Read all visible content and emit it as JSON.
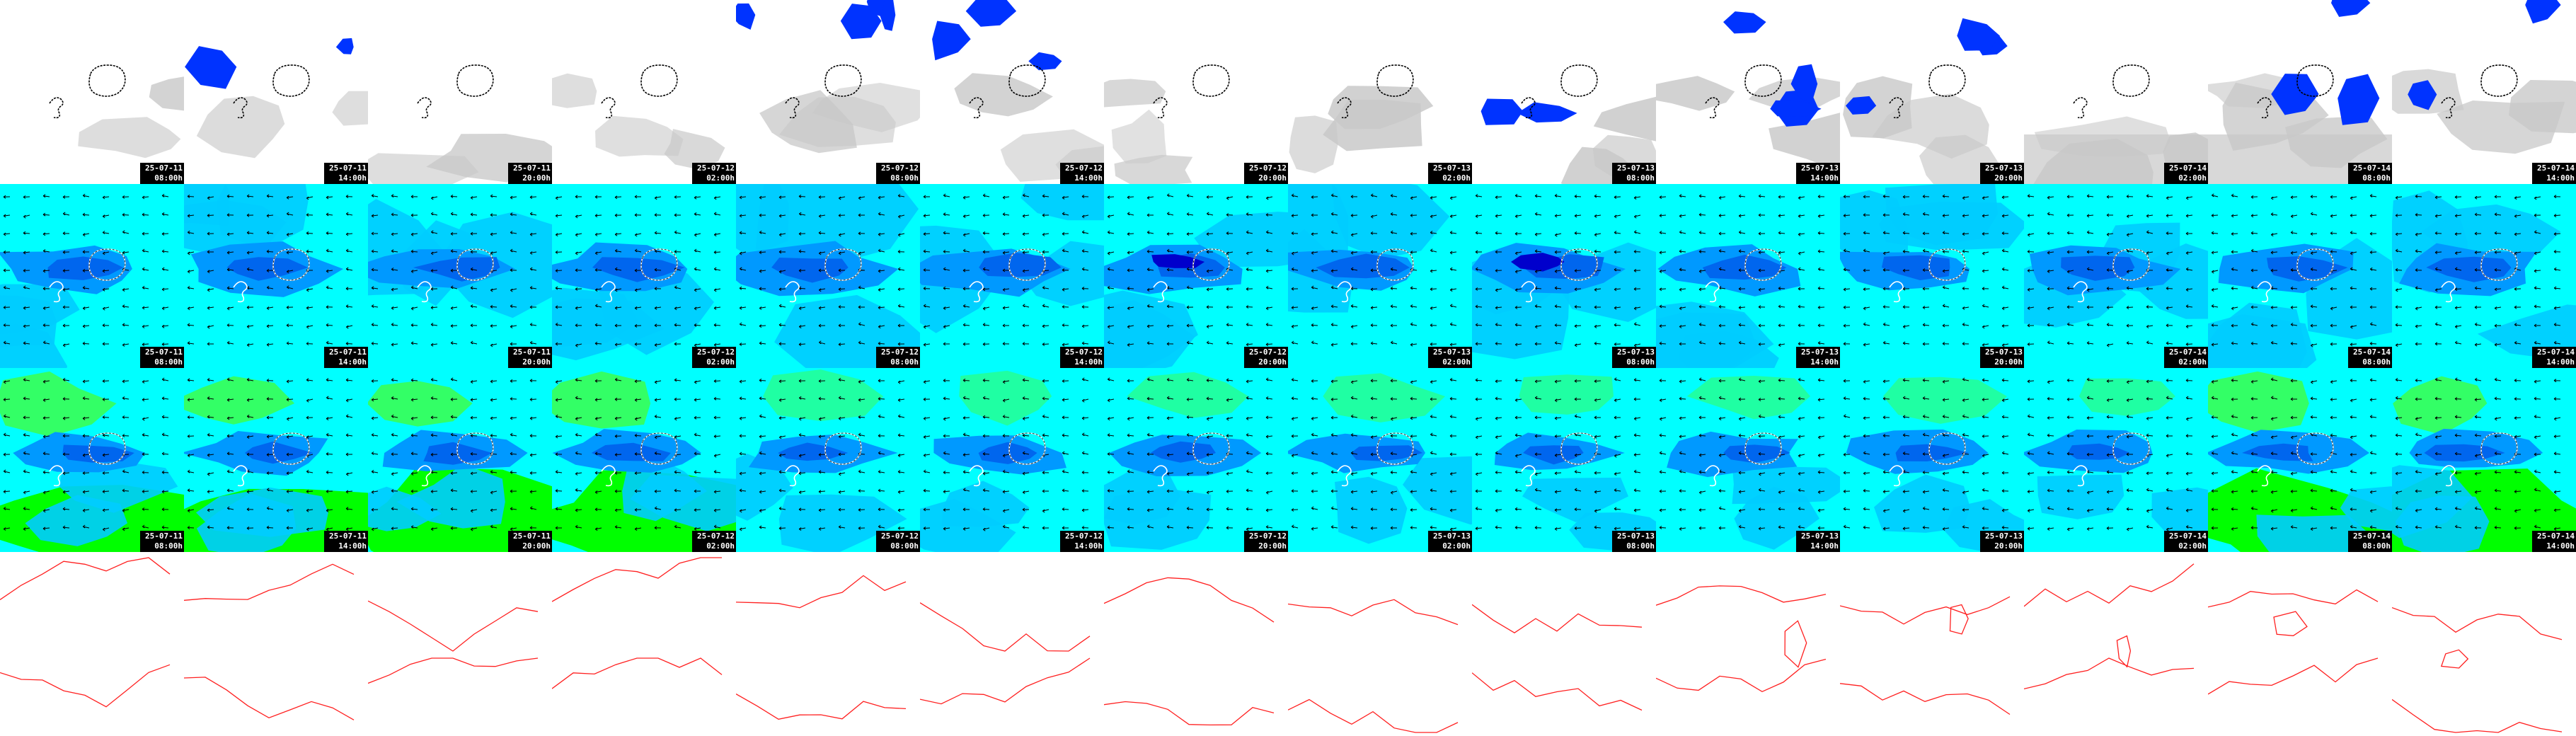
{
  "rows": [
    {
      "kind": "cloud",
      "stamps": [
        {
          "date": "25-07-11",
          "time": "08:00h"
        },
        {
          "date": "25-07-11",
          "time": "14:00h"
        },
        {
          "date": "25-07-11",
          "time": "20:00h"
        },
        {
          "date": "25-07-12",
          "time": "02:00h"
        },
        {
          "date": "25-07-12",
          "time": "08:00h"
        },
        {
          "date": "25-07-12",
          "time": "14:00h"
        },
        {
          "date": "25-07-12",
          "time": "20:00h"
        },
        {
          "date": "25-07-13",
          "time": "02:00h"
        },
        {
          "date": "25-07-13",
          "time": "08:00h"
        },
        {
          "date": "25-07-13",
          "time": "14:00h"
        },
        {
          "date": "25-07-13",
          "time": "20:00h"
        },
        {
          "date": "25-07-14",
          "time": "02:00h"
        },
        {
          "date": "25-07-14",
          "time": "08:00h"
        },
        {
          "date": "25-07-14",
          "time": "14:00h"
        }
      ]
    },
    {
      "kind": "wind",
      "stamps": [
        {
          "date": "25-07-11",
          "time": "08:00h"
        },
        {
          "date": "25-07-11",
          "time": "14:00h"
        },
        {
          "date": "25-07-11",
          "time": "20:00h"
        },
        {
          "date": "25-07-12",
          "time": "02:00h"
        },
        {
          "date": "25-07-12",
          "time": "08:00h"
        },
        {
          "date": "25-07-12",
          "time": "14:00h"
        },
        {
          "date": "25-07-12",
          "time": "20:00h"
        },
        {
          "date": "25-07-13",
          "time": "02:00h"
        },
        {
          "date": "25-07-13",
          "time": "08:00h"
        },
        {
          "date": "25-07-13",
          "time": "14:00h"
        },
        {
          "date": "25-07-13",
          "time": "20:00h"
        },
        {
          "date": "25-07-14",
          "time": "02:00h"
        },
        {
          "date": "25-07-14",
          "time": "08:00h"
        },
        {
          "date": "25-07-14",
          "time": "14:00h"
        }
      ]
    },
    {
      "kind": "gust",
      "stamps": [
        {
          "date": "25-07-11",
          "time": "08:00h"
        },
        {
          "date": "25-07-11",
          "time": "14:00h"
        },
        {
          "date": "25-07-11",
          "time": "20:00h"
        },
        {
          "date": "25-07-12",
          "time": "02:00h"
        },
        {
          "date": "25-07-12",
          "time": "08:00h"
        },
        {
          "date": "25-07-12",
          "time": "14:00h"
        },
        {
          "date": "25-07-12",
          "time": "20:00h"
        },
        {
          "date": "25-07-13",
          "time": "02:00h"
        },
        {
          "date": "25-07-13",
          "time": "08:00h"
        },
        {
          "date": "25-07-13",
          "time": "14:00h"
        },
        {
          "date": "25-07-13",
          "time": "20:00h"
        },
        {
          "date": "25-07-14",
          "time": "02:00h"
        },
        {
          "date": "25-07-14",
          "time": "08:00h"
        },
        {
          "date": "25-07-14",
          "time": "14:00h"
        }
      ]
    },
    {
      "kind": "pressure",
      "stamps": []
    }
  ],
  "colors": {
    "cloud_gray": "#c8c8c8",
    "cloud_blue": "#0033ff",
    "wind_cyan": "#00ffff",
    "wind_blue": "#0099ff",
    "wind_mid": "#00ccff",
    "wind_dark": "#0000cc",
    "gust_green": "#00ff00",
    "gust_lightgreen": "#33ff66",
    "isobar_red": "#ff2020",
    "coast": "#000000"
  }
}
